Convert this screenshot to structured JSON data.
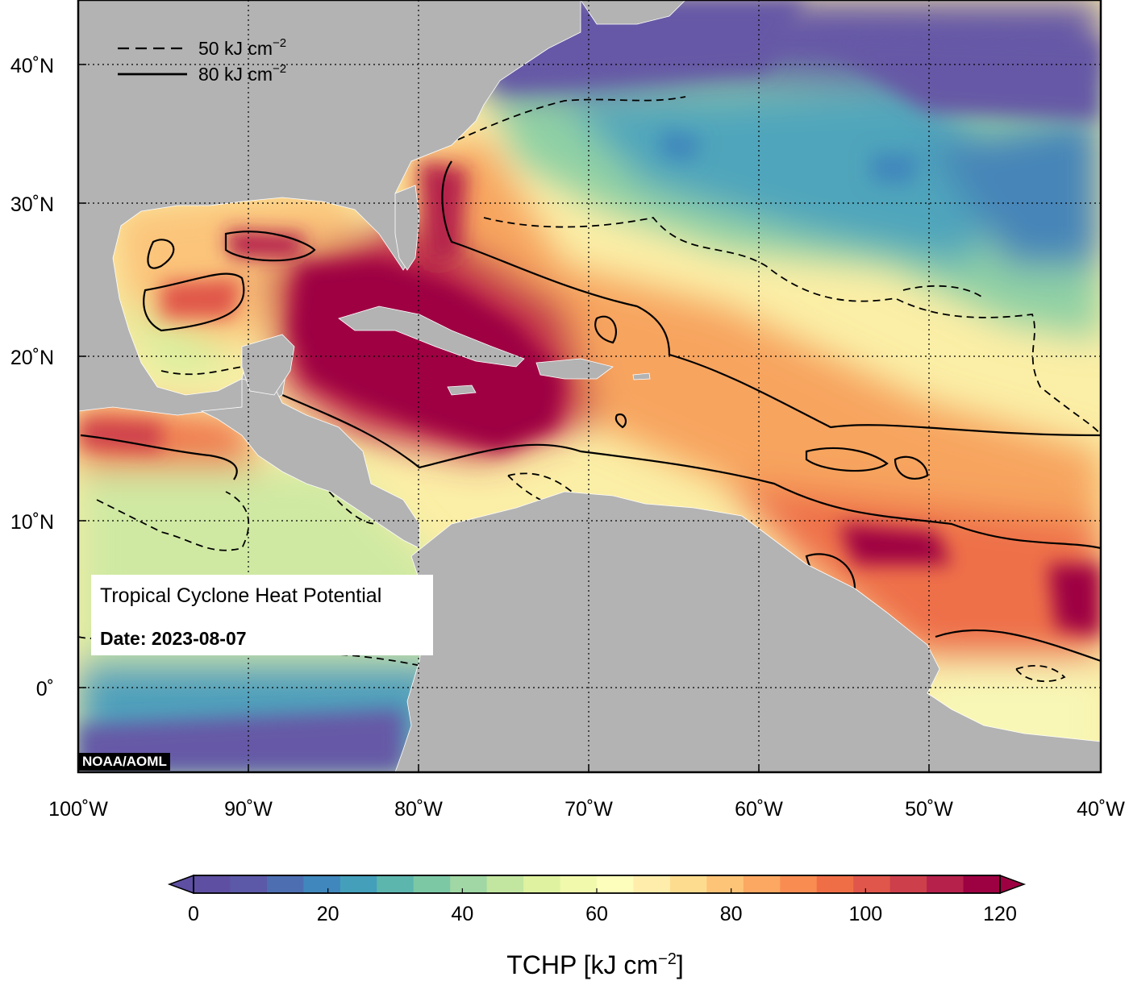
{
  "map": {
    "title": "Tropical Cyclone Heat Potential",
    "date_label": "Date: 2023-08-07",
    "credit": "NOAA/AOML",
    "lon_labels": [
      "100˚W",
      "90˚W",
      "80˚W",
      "70˚W",
      "60˚W",
      "50˚W",
      "40˚W"
    ],
    "lat_labels": [
      "40˚N",
      "30˚N",
      "20˚N",
      "10˚N",
      "0˚"
    ],
    "extent": {
      "lon_min": -100,
      "lon_max": -40,
      "lat_min": -6,
      "lat_max": 44
    }
  },
  "contour_legend": [
    {
      "style": "dashed",
      "label": "50 kJ cm",
      "sup": "−2",
      "value": 50
    },
    {
      "style": "solid",
      "label": "80 kJ cm",
      "sup": "−2",
      "value": 80
    }
  ],
  "colorbar": {
    "title": "TCHP [kJ cm",
    "title_sup": "−2",
    "title_end": "]",
    "min": 0,
    "max": 120,
    "ticks": [
      "0",
      "20",
      "40",
      "60",
      "80",
      "100",
      "120"
    ],
    "colors": [
      "#5e4fa2",
      "#5c59a8",
      "#4d6fb2",
      "#3f87bc",
      "#449fbb",
      "#5db6ae",
      "#7cc8a5",
      "#a0d7a4",
      "#c2e6a0",
      "#dff2a0",
      "#f1f9ac",
      "#fdfdbc",
      "#feedab",
      "#fedc8f",
      "#fdc377",
      "#fca862",
      "#f88c51",
      "#ef6e46",
      "#e0564a",
      "#cd3f4b",
      "#b5214b",
      "#9e0142"
    ]
  },
  "colors": {
    "land": "#b3b3b3",
    "cold": "#6658a6",
    "hot": "#9e0142",
    "frame": "#000000"
  }
}
